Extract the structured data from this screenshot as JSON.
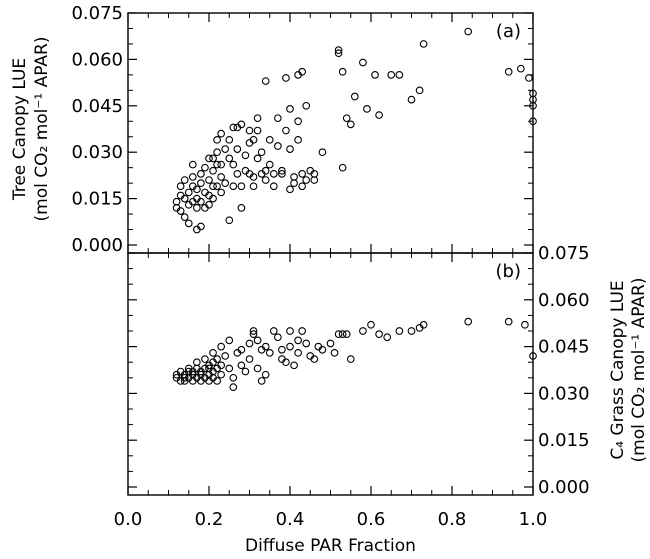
{
  "chart_data": [
    {
      "type": "scatter",
      "panel_label": "(a)",
      "ylabel": "Tree Canopy LUE",
      "ylabel_units": "(mol CO₂ mol⁻¹ APAR)",
      "xlabel": "Diffuse PAR Fraction",
      "xlim": [
        0.0,
        1.0
      ],
      "ylim": [
        0.0,
        0.075
      ],
      "x_ticks": [
        "0.0",
        "0.2",
        "0.4",
        "0.6",
        "0.8",
        "1.0"
      ],
      "y_ticks": [
        "0.000",
        "0.015",
        "0.030",
        "0.045",
        "0.060",
        "0.075"
      ],
      "y_axis_side": "left",
      "points": [
        [
          0.12,
          0.014
        ],
        [
          0.12,
          0.012
        ],
        [
          0.13,
          0.016
        ],
        [
          0.13,
          0.011
        ],
        [
          0.13,
          0.019
        ],
        [
          0.14,
          0.009
        ],
        [
          0.14,
          0.015
        ],
        [
          0.14,
          0.021
        ],
        [
          0.15,
          0.013
        ],
        [
          0.15,
          0.017
        ],
        [
          0.15,
          0.007
        ],
        [
          0.16,
          0.019
        ],
        [
          0.16,
          0.014
        ],
        [
          0.16,
          0.022
        ],
        [
          0.16,
          0.026
        ],
        [
          0.17,
          0.012
        ],
        [
          0.17,
          0.018
        ],
        [
          0.17,
          0.005
        ],
        [
          0.17,
          0.015
        ],
        [
          0.18,
          0.02
        ],
        [
          0.18,
          0.014
        ],
        [
          0.18,
          0.023
        ],
        [
          0.18,
          0.006
        ],
        [
          0.19,
          0.017
        ],
        [
          0.19,
          0.012
        ],
        [
          0.19,
          0.025
        ],
        [
          0.2,
          0.028
        ],
        [
          0.2,
          0.016
        ],
        [
          0.2,
          0.021
        ],
        [
          0.2,
          0.013
        ],
        [
          0.21,
          0.028
        ],
        [
          0.21,
          0.019
        ],
        [
          0.21,
          0.024
        ],
        [
          0.21,
          0.015
        ],
        [
          0.22,
          0.03
        ],
        [
          0.22,
          0.034
        ],
        [
          0.22,
          0.019
        ],
        [
          0.22,
          0.026
        ],
        [
          0.23,
          0.036
        ],
        [
          0.23,
          0.022
        ],
        [
          0.23,
          0.017
        ],
        [
          0.23,
          0.026
        ],
        [
          0.24,
          0.031
        ],
        [
          0.24,
          0.02
        ],
        [
          0.25,
          0.034
        ],
        [
          0.25,
          0.028
        ],
        [
          0.25,
          0.008
        ],
        [
          0.26,
          0.038
        ],
        [
          0.26,
          0.026
        ],
        [
          0.26,
          0.019
        ],
        [
          0.27,
          0.031
        ],
        [
          0.27,
          0.038
        ],
        [
          0.27,
          0.023
        ],
        [
          0.28,
          0.039
        ],
        [
          0.28,
          0.019
        ],
        [
          0.28,
          0.012
        ],
        [
          0.29,
          0.024
        ],
        [
          0.29,
          0.029
        ],
        [
          0.3,
          0.037
        ],
        [
          0.3,
          0.023
        ],
        [
          0.3,
          0.033
        ],
        [
          0.31,
          0.034
        ],
        [
          0.31,
          0.022
        ],
        [
          0.31,
          0.019
        ],
        [
          0.32,
          0.041
        ],
        [
          0.32,
          0.028
        ],
        [
          0.32,
          0.037
        ],
        [
          0.33,
          0.023
        ],
        [
          0.33,
          0.03
        ],
        [
          0.34,
          0.053
        ],
        [
          0.34,
          0.024
        ],
        [
          0.34,
          0.021
        ],
        [
          0.35,
          0.034
        ],
        [
          0.35,
          0.026
        ],
        [
          0.36,
          0.023
        ],
        [
          0.36,
          0.019
        ],
        [
          0.37,
          0.041
        ],
        [
          0.37,
          0.032
        ],
        [
          0.38,
          0.023
        ],
        [
          0.38,
          0.024
        ],
        [
          0.39,
          0.054
        ],
        [
          0.39,
          0.037
        ],
        [
          0.4,
          0.044
        ],
        [
          0.4,
          0.031
        ],
        [
          0.4,
          0.018
        ],
        [
          0.41,
          0.022
        ],
        [
          0.41,
          0.02
        ],
        [
          0.42,
          0.055
        ],
        [
          0.42,
          0.04
        ],
        [
          0.42,
          0.034
        ],
        [
          0.43,
          0.056
        ],
        [
          0.43,
          0.023
        ],
        [
          0.43,
          0.019
        ],
        [
          0.44,
          0.045
        ],
        [
          0.44,
          0.021
        ],
        [
          0.45,
          0.024
        ],
        [
          0.46,
          0.023
        ],
        [
          0.46,
          0.021
        ],
        [
          0.48,
          0.03
        ],
        [
          0.52,
          0.062
        ],
        [
          0.52,
          0.063
        ],
        [
          0.53,
          0.056
        ],
        [
          0.53,
          0.025
        ],
        [
          0.54,
          0.041
        ],
        [
          0.55,
          0.039
        ],
        [
          0.56,
          0.048
        ],
        [
          0.58,
          0.059
        ],
        [
          0.59,
          0.044
        ],
        [
          0.61,
          0.055
        ],
        [
          0.62,
          0.042
        ],
        [
          0.65,
          0.055
        ],
        [
          0.67,
          0.055
        ],
        [
          0.7,
          0.047
        ],
        [
          0.72,
          0.05
        ],
        [
          0.73,
          0.065
        ],
        [
          0.84,
          0.069
        ],
        [
          0.94,
          0.056
        ],
        [
          0.97,
          0.057
        ],
        [
          0.99,
          0.054
        ],
        [
          1.0,
          0.049
        ],
        [
          1.0,
          0.047
        ],
        [
          1.0,
          0.045
        ],
        [
          1.0,
          0.04
        ]
      ]
    },
    {
      "type": "scatter",
      "panel_label": "(b)",
      "ylabel": "C₄ Grass Canopy LUE",
      "ylabel_units": "(mol CO₂ mol⁻¹ APAR)",
      "xlabel": "Diffuse PAR Fraction",
      "xlim": [
        0.0,
        1.0
      ],
      "ylim": [
        0.0,
        0.075
      ],
      "x_ticks": [
        "0.0",
        "0.2",
        "0.4",
        "0.6",
        "0.8",
        "1.0"
      ],
      "y_ticks": [
        "0.000",
        "0.015",
        "0.030",
        "0.045",
        "0.060",
        "0.075"
      ],
      "y_axis_side": "right",
      "points": [
        [
          0.12,
          0.035
        ],
        [
          0.12,
          0.036
        ],
        [
          0.13,
          0.037
        ],
        [
          0.13,
          0.034
        ],
        [
          0.14,
          0.035
        ],
        [
          0.14,
          0.036
        ],
        [
          0.14,
          0.034
        ],
        [
          0.15,
          0.037
        ],
        [
          0.15,
          0.035
        ],
        [
          0.15,
          0.038
        ],
        [
          0.16,
          0.036
        ],
        [
          0.16,
          0.034
        ],
        [
          0.16,
          0.037
        ],
        [
          0.17,
          0.04
        ],
        [
          0.17,
          0.035
        ],
        [
          0.17,
          0.038
        ],
        [
          0.18,
          0.036
        ],
        [
          0.18,
          0.034
        ],
        [
          0.18,
          0.037
        ],
        [
          0.19,
          0.038
        ],
        [
          0.19,
          0.035
        ],
        [
          0.19,
          0.041
        ],
        [
          0.2,
          0.038
        ],
        [
          0.2,
          0.036
        ],
        [
          0.2,
          0.039
        ],
        [
          0.2,
          0.034
        ],
        [
          0.21,
          0.04
        ],
        [
          0.21,
          0.037
        ],
        [
          0.21,
          0.043
        ],
        [
          0.21,
          0.035
        ],
        [
          0.22,
          0.038
        ],
        [
          0.22,
          0.041
        ],
        [
          0.22,
          0.034
        ],
        [
          0.23,
          0.045
        ],
        [
          0.23,
          0.039
        ],
        [
          0.23,
          0.036
        ],
        [
          0.24,
          0.042
        ],
        [
          0.25,
          0.047
        ],
        [
          0.25,
          0.038
        ],
        [
          0.26,
          0.035
        ],
        [
          0.26,
          0.032
        ],
        [
          0.27,
          0.043
        ],
        [
          0.28,
          0.044
        ],
        [
          0.28,
          0.039
        ],
        [
          0.29,
          0.037
        ],
        [
          0.3,
          0.046
        ],
        [
          0.3,
          0.041
        ],
        [
          0.31,
          0.05
        ],
        [
          0.31,
          0.049
        ],
        [
          0.32,
          0.047
        ],
        [
          0.32,
          0.038
        ],
        [
          0.33,
          0.044
        ],
        [
          0.33,
          0.034
        ],
        [
          0.34,
          0.045
        ],
        [
          0.34,
          0.036
        ],
        [
          0.35,
          0.043
        ],
        [
          0.36,
          0.05
        ],
        [
          0.37,
          0.048
        ],
        [
          0.38,
          0.044
        ],
        [
          0.38,
          0.041
        ],
        [
          0.39,
          0.04
        ],
        [
          0.4,
          0.05
        ],
        [
          0.4,
          0.045
        ],
        [
          0.41,
          0.039
        ],
        [
          0.42,
          0.047
        ],
        [
          0.42,
          0.043
        ],
        [
          0.43,
          0.05
        ],
        [
          0.44,
          0.046
        ],
        [
          0.45,
          0.042
        ],
        [
          0.46,
          0.041
        ],
        [
          0.47,
          0.045
        ],
        [
          0.48,
          0.044
        ],
        [
          0.5,
          0.046
        ],
        [
          0.51,
          0.043
        ],
        [
          0.52,
          0.049
        ],
        [
          0.53,
          0.049
        ],
        [
          0.54,
          0.049
        ],
        [
          0.55,
          0.041
        ],
        [
          0.58,
          0.05
        ],
        [
          0.6,
          0.052
        ],
        [
          0.62,
          0.049
        ],
        [
          0.64,
          0.048
        ],
        [
          0.67,
          0.05
        ],
        [
          0.7,
          0.05
        ],
        [
          0.72,
          0.051
        ],
        [
          0.73,
          0.052
        ],
        [
          0.84,
          0.053
        ],
        [
          0.94,
          0.053
        ],
        [
          0.98,
          0.052
        ],
        [
          1.0,
          0.042
        ]
      ]
    }
  ]
}
